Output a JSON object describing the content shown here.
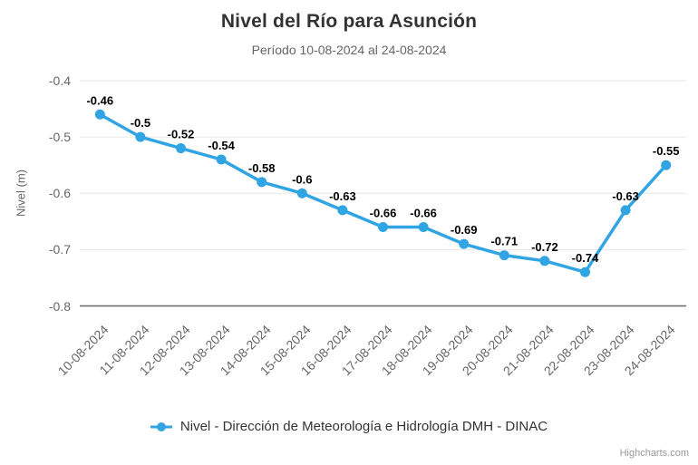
{
  "chart": {
    "credits_label": "Highcharts.com"
  },
  "colors": {
    "series": "#31A5E3",
    "grid": "#E6E6E6",
    "axis_line": "#666666",
    "title_text": "#333333",
    "muted_text": "#666666",
    "data_label": "#000000",
    "credits_text": "#999999"
  },
  "chart_data": {
    "type": "line",
    "title": "Nivel del Río para Asunción",
    "subtitle": "Período 10-08-2024 al 24-08-2024",
    "categories": [
      "10-08-2024",
      "11-08-2024",
      "12-08-2024",
      "13-08-2024",
      "14-08-2024",
      "15-08-2024",
      "16-08-2024",
      "17-08-2024",
      "18-08-2024",
      "19-08-2024",
      "20-08-2024",
      "21-08-2024",
      "22-08-2024",
      "23-08-2024",
      "24-08-2024"
    ],
    "series": [
      {
        "name": "Nivel - Dirección de Meteorología e Hidrología DMH - DINAC",
        "values": [
          -0.46,
          -0.5,
          -0.52,
          -0.54,
          -0.58,
          -0.6,
          -0.63,
          -0.66,
          -0.66,
          -0.69,
          -0.71,
          -0.72,
          -0.74,
          -0.63,
          -0.55
        ]
      }
    ],
    "data_labels": [
      "-0.46",
      "-0.5",
      "-0.52",
      "-0.54",
      "-0.58",
      "-0.6",
      "-0.63",
      "-0.66",
      "-0.66",
      "-0.69",
      "-0.71",
      "-0.72",
      "-0.74",
      "-0.63",
      "-0.55"
    ],
    "xlabel": "",
    "ylabel": "Nivel (m)",
    "ylim": [
      -0.8,
      -0.4
    ],
    "yticks": [
      -0.4,
      -0.5,
      -0.6,
      -0.7,
      -0.8
    ],
    "grid": true,
    "legend_position": "bottom"
  }
}
